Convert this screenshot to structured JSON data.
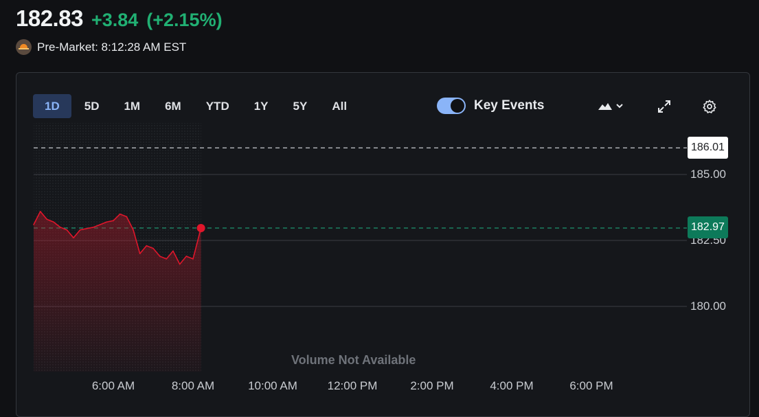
{
  "quote": {
    "price": "182.83",
    "change": "+3.84",
    "change_pct": "(+2.15%)",
    "session_label": "Pre-Market: 8:12:28 AM EST",
    "change_color": "#21b073"
  },
  "toolbar": {
    "ranges": [
      "1D",
      "5D",
      "1M",
      "6M",
      "YTD",
      "1Y",
      "5Y",
      "All"
    ],
    "active_range": "1D",
    "key_events_label": "Key Events",
    "key_events_enabled": true,
    "icons": [
      "mountain-chart-icon",
      "chevron-down-icon",
      "expand-icon",
      "gear-icon"
    ]
  },
  "chart": {
    "high_tag": "186.01",
    "current_tag": "182.97",
    "y_ticks": [
      "185.00",
      "182.50",
      "180.00"
    ],
    "x_ticks": [
      "6:00 AM",
      "8:00 AM",
      "10:00 AM",
      "12:00 PM",
      "2:00 PM",
      "4:00 PM",
      "6:00 PM"
    ],
    "volume_message": "Volume Not Available",
    "line_color": "#e0162b",
    "reference_color": "#1fa37a"
  },
  "chart_data": {
    "type": "line",
    "title": "",
    "xlabel": "",
    "ylabel": "",
    "x": [
      "4:00 AM",
      "4:10 AM",
      "4:20 AM",
      "4:30 AM",
      "4:40 AM",
      "4:50 AM",
      "5:00 AM",
      "5:10 AM",
      "5:20 AM",
      "5:30 AM",
      "5:40 AM",
      "5:50 AM",
      "6:00 AM",
      "6:10 AM",
      "6:20 AM",
      "6:30 AM",
      "6:40 AM",
      "6:50 AM",
      "7:00 AM",
      "7:10 AM",
      "7:20 AM",
      "7:30 AM",
      "7:40 AM",
      "7:50 AM",
      "8:00 AM",
      "8:12 AM"
    ],
    "series": [
      {
        "values": [
          183.1,
          183.6,
          183.3,
          183.2,
          183.0,
          182.9,
          182.6,
          182.9,
          182.95,
          183.0,
          183.1,
          183.2,
          183.25,
          183.5,
          183.4,
          182.9,
          182.0,
          182.3,
          182.2,
          181.9,
          181.8,
          182.1,
          181.6,
          181.9,
          181.8,
          182.97
        ]
      }
    ],
    "reference_lines": [
      186.01,
      182.97
    ],
    "ylim": [
      178.0,
      186.5
    ],
    "grid": true
  }
}
